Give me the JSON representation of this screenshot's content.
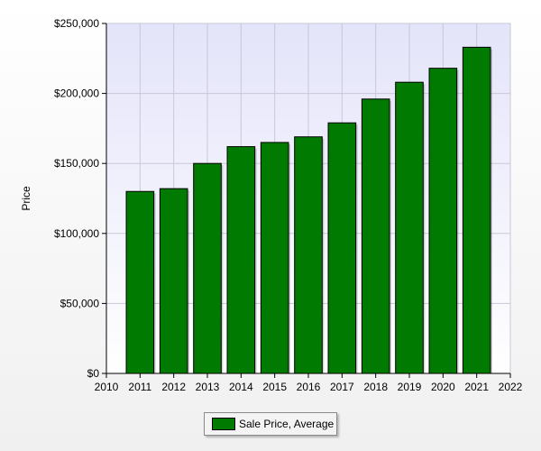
{
  "chart_data": {
    "type": "bar",
    "ylabel": "Price",
    "xlabel": "",
    "x_ticks": [
      "2010",
      "2011",
      "2012",
      "2013",
      "2014",
      "2015",
      "2016",
      "2017",
      "2018",
      "2019",
      "2020",
      "2021",
      "2022"
    ],
    "xlim": [
      2010,
      2022
    ],
    "categories": [
      "2011",
      "2012",
      "2013",
      "2014",
      "2015",
      "2016",
      "2017",
      "2018",
      "2019",
      "2020",
      "2021"
    ],
    "series": [
      {
        "name": "Sale Price, Average",
        "values": [
          130000,
          132000,
          150000,
          162000,
          165000,
          169000,
          179000,
          196000,
          208000,
          218000,
          233000
        ],
        "color": "#007a00"
      }
    ],
    "ylim": [
      0,
      250000
    ],
    "y_ticks": [
      "$0",
      "$50,000",
      "$100,000",
      "$150,000",
      "$200,000",
      "$250,000"
    ],
    "y_tick_values": [
      0,
      50000,
      100000,
      150000,
      200000,
      250000
    ],
    "grid": true,
    "legend_position": "bottom-center",
    "plot_background": "#e8e8fb"
  }
}
